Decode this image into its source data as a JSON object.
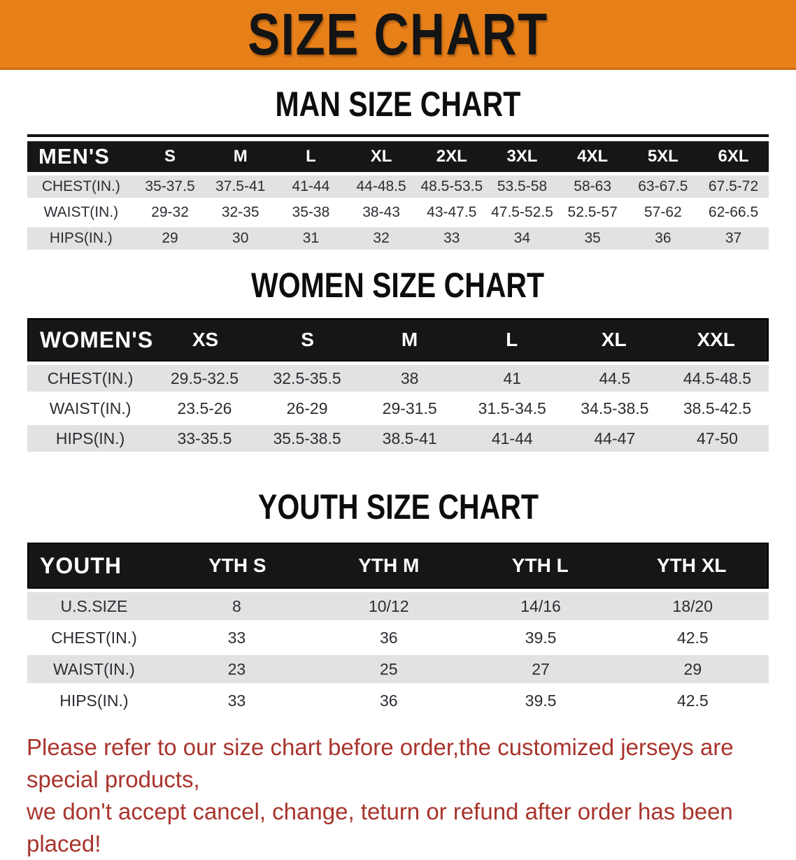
{
  "banner": {
    "title": "SIZE CHART"
  },
  "colors": {
    "banner_bg": "#E8801A",
    "header_bar": "#161616",
    "row_alt": "#E2E2E2",
    "footer_red": "#A8342C"
  },
  "sections": [
    {
      "heading": "MAN SIZE CHART",
      "table": {
        "header": [
          "MEN'S",
          "S",
          "M",
          "L",
          "XL",
          "2XL",
          "3XL",
          "4XL",
          "5XL",
          "6XL"
        ],
        "rows": [
          [
            "CHEST(IN.)",
            "35-37.5",
            "37.5-41",
            "41-44",
            "44-48.5",
            "48.5-53.5",
            "53.5-58",
            "58-63",
            "63-67.5",
            "67.5-72"
          ],
          [
            "WAIST(IN.)",
            "29-32",
            "32-35",
            "35-38",
            "38-43",
            "43-47.5",
            "47.5-52.5",
            "52.5-57",
            "57-62",
            "62-66.5"
          ],
          [
            "HIPS(IN.)",
            "29",
            "30",
            "31",
            "32",
            "33",
            "34",
            "35",
            "36",
            "37"
          ]
        ]
      }
    },
    {
      "heading": "WOMEN SIZE CHART",
      "table": {
        "header": [
          "WOMEN'S",
          "XS",
          "S",
          "M",
          "L",
          "XL",
          "XXL"
        ],
        "rows": [
          [
            "CHEST(IN.)",
            "29.5-32.5",
            "32.5-35.5",
            "38",
            "41",
            "44.5",
            "44.5-48.5"
          ],
          [
            "WAIST(IN.)",
            "23.5-26",
            "26-29",
            "29-31.5",
            "31.5-34.5",
            "34.5-38.5",
            "38.5-42.5"
          ],
          [
            "HIPS(IN.)",
            "33-35.5",
            "35.5-38.5",
            "38.5-41",
            "41-44",
            "44-47",
            "47-50"
          ]
        ]
      }
    },
    {
      "heading": "YOUTH SIZE CHART",
      "table": {
        "header": [
          "YOUTH",
          "YTH S",
          "YTH M",
          "YTH L",
          "YTH XL"
        ],
        "rows": [
          [
            "U.S.SIZE",
            "8",
            "10/12",
            "14/16",
            "18/20"
          ],
          [
            "CHEST(IN.)",
            "33",
            "36",
            "39.5",
            "42.5"
          ],
          [
            "WAIST(IN.)",
            "23",
            "25",
            "27",
            "29"
          ],
          [
            "HIPS(IN.)",
            "33",
            "36",
            "39.5",
            "42.5"
          ]
        ]
      }
    }
  ],
  "footer": {
    "line1": "Please refer to our size chart before order,the customized jerseys are special products,",
    "line2": "we don't accept cancel, change, teturn or refund after order has been placed!"
  }
}
